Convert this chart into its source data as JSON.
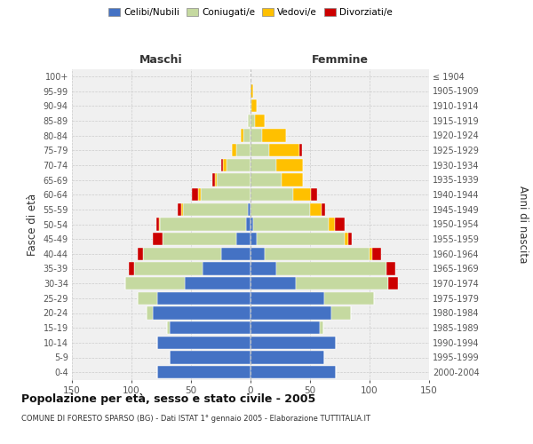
{
  "age_groups": [
    "0-4",
    "5-9",
    "10-14",
    "15-19",
    "20-24",
    "25-29",
    "30-34",
    "35-39",
    "40-44",
    "45-49",
    "50-54",
    "55-59",
    "60-64",
    "65-69",
    "70-74",
    "75-79",
    "80-84",
    "85-89",
    "90-94",
    "95-99",
    "100+"
  ],
  "birth_years": [
    "2000-2004",
    "1995-1999",
    "1990-1994",
    "1985-1989",
    "1980-1984",
    "1975-1979",
    "1970-1974",
    "1965-1969",
    "1960-1964",
    "1955-1959",
    "1950-1954",
    "1945-1949",
    "1940-1944",
    "1935-1939",
    "1930-1934",
    "1925-1929",
    "1920-1924",
    "1915-1919",
    "1910-1914",
    "1905-1909",
    "≤ 1904"
  ],
  "male_celibi": [
    78,
    68,
    78,
    68,
    82,
    78,
    55,
    40,
    25,
    12,
    4,
    2,
    0,
    0,
    0,
    0,
    0,
    0,
    0,
    0,
    0
  ],
  "male_coniugati": [
    0,
    0,
    0,
    2,
    5,
    17,
    50,
    58,
    65,
    62,
    72,
    55,
    42,
    28,
    20,
    12,
    6,
    2,
    1,
    0,
    0
  ],
  "male_vedovi": [
    0,
    0,
    0,
    0,
    0,
    0,
    0,
    0,
    0,
    0,
    1,
    1,
    2,
    2,
    3,
    4,
    2,
    0,
    0,
    0,
    0
  ],
  "male_divorziati": [
    0,
    0,
    0,
    0,
    0,
    0,
    0,
    4,
    5,
    8,
    2,
    3,
    5,
    2,
    2,
    0,
    0,
    0,
    0,
    0,
    0
  ],
  "fem_nubili": [
    72,
    62,
    72,
    58,
    68,
    62,
    38,
    22,
    12,
    5,
    2,
    0,
    0,
    0,
    0,
    0,
    0,
    0,
    0,
    0,
    0
  ],
  "fem_coniugate": [
    0,
    0,
    0,
    3,
    16,
    42,
    78,
    92,
    88,
    74,
    64,
    50,
    36,
    26,
    22,
    16,
    10,
    4,
    1,
    0,
    0
  ],
  "fem_vedove": [
    0,
    0,
    0,
    0,
    0,
    0,
    0,
    0,
    2,
    3,
    5,
    10,
    15,
    18,
    22,
    25,
    20,
    8,
    4,
    2,
    0
  ],
  "fem_divorziate": [
    0,
    0,
    0,
    0,
    0,
    0,
    8,
    8,
    8,
    3,
    8,
    3,
    5,
    0,
    0,
    2,
    0,
    0,
    0,
    0,
    0
  ],
  "colors": {
    "celibi": "#4472c4",
    "coniugati": "#c5d9a0",
    "vedovi": "#ffc000",
    "divorziati": "#cc0000"
  },
  "xlim": 150,
  "title": "Popolazione per età, sesso e stato civile - 2005",
  "subtitle": "COMUNE DI FORESTO SPARSO (BG) - Dati ISTAT 1° gennaio 2005 - Elaborazione TUTTITALIA.IT",
  "ylabel_left": "Fasce di età",
  "ylabel_right": "Anni di nascita",
  "xlabel_male": "Maschi",
  "xlabel_female": "Femmine",
  "legend_labels": [
    "Celibi/Nubili",
    "Coniugati/e",
    "Vedovi/e",
    "Divorziati/e"
  ],
  "bg_color": "#ffffff",
  "plot_bg_color": "#f0f0f0"
}
